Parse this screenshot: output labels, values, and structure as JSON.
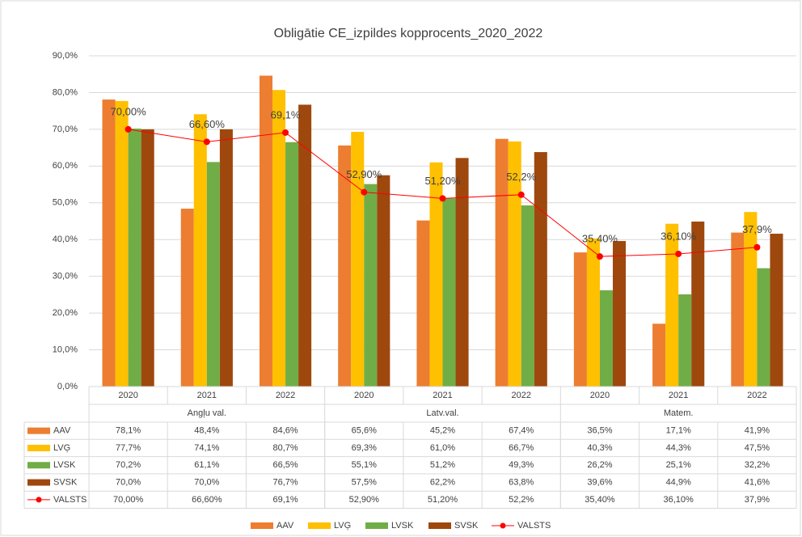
{
  "chart_data": {
    "type": "bar",
    "title": "Obligātie CE_izpildes kopprocents_2020_2022",
    "categories": [
      "2020",
      "2021",
      "2022",
      "2020",
      "2021",
      "2022",
      "2020",
      "2021",
      "2022"
    ],
    "groups": [
      "Angļu val.",
      "Latv.val.",
      "Matem."
    ],
    "ylim": [
      0,
      90
    ],
    "yticks": [
      {
        "value": 0,
        "label": "0,0%"
      },
      {
        "value": 10,
        "label": "10,0%"
      },
      {
        "value": 20,
        "label": "20,0%"
      },
      {
        "value": 30,
        "label": "30,0%"
      },
      {
        "value": 40,
        "label": "40,0%"
      },
      {
        "value": 50,
        "label": "50,0%"
      },
      {
        "value": 60,
        "label": "60,0%"
      },
      {
        "value": 70,
        "label": "70,0%"
      },
      {
        "value": 80,
        "label": "80,0%"
      },
      {
        "value": 90,
        "label": "90,0%"
      }
    ],
    "grid": true,
    "legend": "bottom",
    "series": [
      {
        "name": "AAV",
        "color": "#ed7d31",
        "values": [
          78.1,
          48.4,
          84.6,
          65.6,
          45.2,
          67.4,
          36.5,
          17.1,
          41.9
        ],
        "value_labels": [
          "78,1%",
          "48,4%",
          "84,6%",
          "65,6%",
          "45,2%",
          "67,4%",
          "36,5%",
          "17,1%",
          "41,9%"
        ]
      },
      {
        "name": "LVĢ",
        "color": "#ffc000",
        "values": [
          77.7,
          74.1,
          80.7,
          69.3,
          61.0,
          66.7,
          40.3,
          44.3,
          47.5
        ],
        "value_labels": [
          "77,7%",
          "74,1%",
          "80,7%",
          "69,3%",
          "61,0%",
          "66,7%",
          "40,3%",
          "44,3%",
          "47,5%"
        ]
      },
      {
        "name": "LVSK",
        "color": "#70ad47",
        "values": [
          70.2,
          61.1,
          66.5,
          55.1,
          51.2,
          49.3,
          26.2,
          25.1,
          32.2
        ],
        "value_labels": [
          "70,2%",
          "61,1%",
          "66,5%",
          "55,1%",
          "51,2%",
          "49,3%",
          "26,2%",
          "25,1%",
          "32,2%"
        ]
      },
      {
        "name": "SVSK",
        "color": "#9e480e",
        "values": [
          70.0,
          70.0,
          76.7,
          57.5,
          62.2,
          63.8,
          39.6,
          44.9,
          41.6
        ],
        "value_labels": [
          "70,0%",
          "70,0%",
          "76,7%",
          "57,5%",
          "62,2%",
          "63,8%",
          "39,6%",
          "44,9%",
          "41,6%"
        ]
      },
      {
        "name": "VALSTS",
        "type": "line",
        "color": "#ff0000",
        "values": [
          70.0,
          66.6,
          69.1,
          52.9,
          51.2,
          52.2,
          35.4,
          36.1,
          37.9
        ],
        "value_labels": [
          "70,00%",
          "66,60%",
          "69,1%",
          "52,90%",
          "51,20%",
          "52,2%",
          "35,40%",
          "36,10%",
          "37,9%"
        ]
      }
    ]
  }
}
